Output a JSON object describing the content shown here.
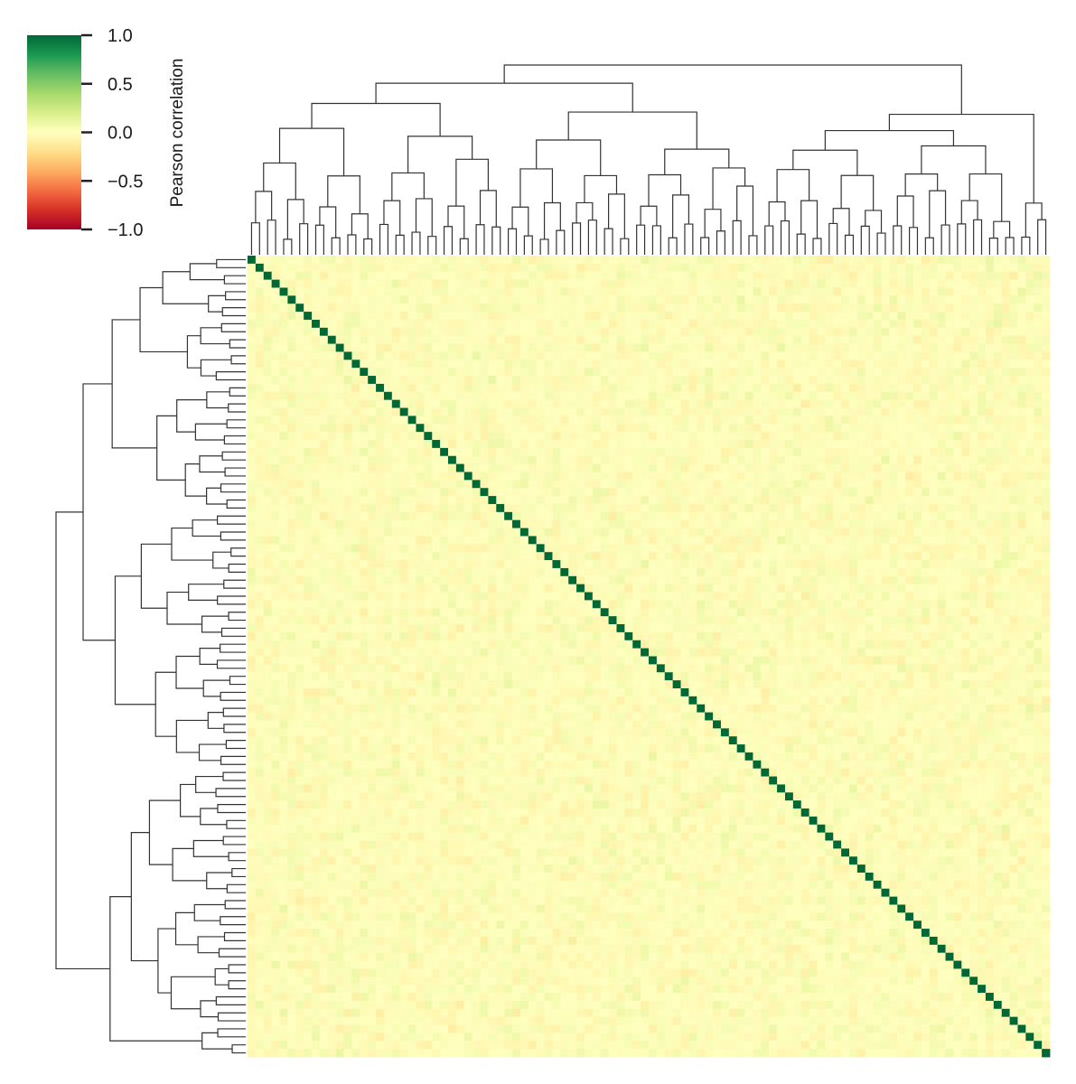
{
  "chart_data": {
    "type": "heatmap",
    "subtype": "clustermap",
    "title": "",
    "n": 100,
    "diagonal_value": 1.0,
    "off_diagonal_range": [
      -0.2,
      0.2
    ],
    "off_diagonal_typical": 0.0,
    "vmin": -1.0,
    "vmax": 1.0,
    "colormap": "RdYlGn",
    "colormap_stops": [
      "#a50026",
      "#d73027",
      "#f46d43",
      "#fdae61",
      "#fee08b",
      "#ffffbf",
      "#d9ef8b",
      "#a6d96a",
      "#66bd63",
      "#1a9850",
      "#006837"
    ],
    "row_dendrogram": true,
    "col_dendrogram": true,
    "tick_labels_shown": false,
    "dendrogram_color": "#333333",
    "colorbar": {
      "label": "Pearson correlation",
      "ticks": [
        "1.0",
        "0.5",
        "0.0",
        "−0.5",
        "−1.0"
      ],
      "tick_values": [
        1.0,
        0.5,
        0.0,
        -0.5,
        -1.0
      ],
      "placement": "top-left"
    }
  }
}
